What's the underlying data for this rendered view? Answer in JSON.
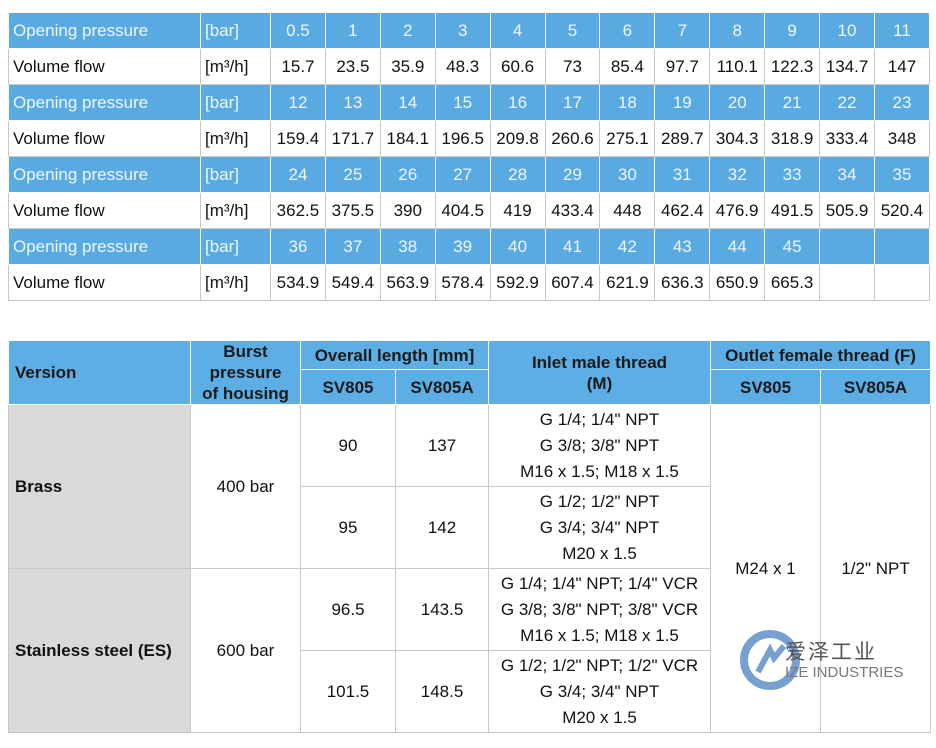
{
  "table1": {
    "rows": [
      {
        "label": "Opening pressure",
        "unit": "[bar]",
        "values": [
          "0.5",
          "1",
          "2",
          "3",
          "4",
          "5",
          "6",
          "7",
          "8",
          "9",
          "10",
          "11"
        ]
      },
      {
        "label": "Volume flow",
        "unit": "[m³/h]",
        "values": [
          "15.7",
          "23.5",
          "35.9",
          "48.3",
          "60.6",
          "73",
          "85.4",
          "97.7",
          "110.1",
          "122.3",
          "134.7",
          "147"
        ]
      },
      {
        "label": "Opening pressure",
        "unit": "[bar]",
        "values": [
          "12",
          "13",
          "14",
          "15",
          "16",
          "17",
          "18",
          "19",
          "20",
          "21",
          "22",
          "23"
        ]
      },
      {
        "label": "Volume flow",
        "unit": "[m³/h]",
        "values": [
          "159.4",
          "171.7",
          "184.1",
          "196.5",
          "209.8",
          "260.6",
          "275.1",
          "289.7",
          "304.3",
          "318.9",
          "333.4",
          "348"
        ]
      },
      {
        "label": "Opening pressure",
        "unit": "[bar]",
        "values": [
          "24",
          "25",
          "26",
          "27",
          "28",
          "29",
          "30",
          "31",
          "32",
          "33",
          "34",
          "35"
        ]
      },
      {
        "label": "Volume flow",
        "unit": "[m³/h]",
        "values": [
          "362.5",
          "375.5",
          "390",
          "404.5",
          "419",
          "433.4",
          "448",
          "462.4",
          "476.9",
          "491.5",
          "505.9",
          "520.4"
        ]
      },
      {
        "label": "Opening pressure",
        "unit": "[bar]",
        "values": [
          "36",
          "37",
          "38",
          "39",
          "40",
          "41",
          "42",
          "43",
          "44",
          "45"
        ]
      },
      {
        "label": "Volume flow",
        "unit": "[m³/h]",
        "values": [
          "534.9",
          "549.4",
          "563.9",
          "578.4",
          "592.9",
          "607.4",
          "621.9",
          "636.3",
          "650.9",
          "665.3"
        ]
      }
    ]
  },
  "table2": {
    "header": {
      "version": "Version",
      "burst": [
        "Burst",
        "pressure",
        "of housing"
      ],
      "overall": "Overall length [mm]",
      "inlet": [
        "Inlet male thread",
        "(M)"
      ],
      "outlet": "Outlet female thread (F)",
      "sub": [
        "SV805",
        "SV805A",
        "SV805",
        "SV805A"
      ]
    },
    "groups": [
      {
        "version": "Brass",
        "burst": "400 bar",
        "variants": [
          {
            "sv805": "90",
            "sv805a": "137",
            "inlet": [
              "G 1/4; 1/4\" NPT",
              "G 3/8; 3/8\" NPT",
              "M16 x 1.5; M18 x 1.5"
            ]
          },
          {
            "sv805": "95",
            "sv805a": "142",
            "inlet": [
              "G 1/2; 1/2\" NPT",
              "G 3/4; 3/4\" NPT",
              "M20 x 1.5"
            ]
          }
        ]
      },
      {
        "version": "Stainless steel (ES)",
        "burst": "600 bar",
        "variants": [
          {
            "sv805": "96.5",
            "sv805a": "143.5",
            "inlet": [
              "G 1/4; 1/4\" NPT; 1/4\" VCR",
              "G 3/8; 3/8\" NPT; 3/8\" VCR",
              "M16 x 1.5; M18 x 1.5"
            ]
          },
          {
            "sv805": "101.5",
            "sv805a": "148.5",
            "inlet": [
              "G 1/2; 1/2\" NPT; 1/2\" VCR",
              "G 3/4; 3/4\" NPT",
              "M20 x 1.5"
            ]
          }
        ]
      }
    ],
    "outlet": {
      "sv805": "M24 x 1",
      "sv805a": "1/2\" NPT"
    }
  },
  "watermark": {
    "cn": "爱泽工业",
    "en": "IZE INDUSTRIES"
  }
}
